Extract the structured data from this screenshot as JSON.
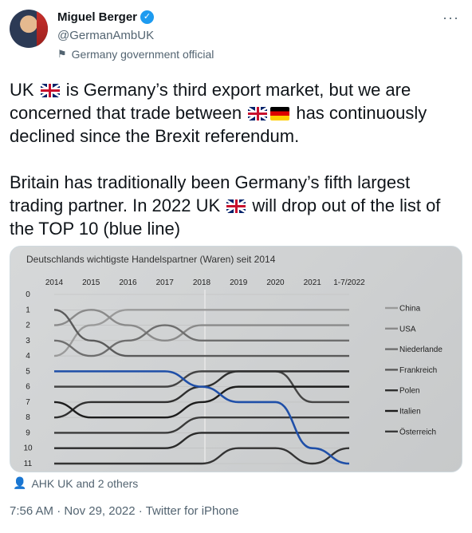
{
  "user": {
    "name": "Miguel Berger",
    "handle": "@GermanAmbUK",
    "affiliation": "Germany government official"
  },
  "tweet": {
    "p1_a": "UK ",
    "p1_b": " is Germany’s third export market, but we are concerned that trade between ",
    "p1_c": " has continuously declined since the Brexit referendum.",
    "p2_a": "Britain has traditionally been Germany’s fifth largest trading partner. In 2022 UK ",
    "p2_b": " will drop out of the list of the TOP 10 (blue line)"
  },
  "social_context": "AHK UK and 2 others",
  "meta": {
    "time": "7:56 AM",
    "sep1": " · ",
    "date": "Nov 29, 2022",
    "sep2": " · ",
    "source": "Twitter for iPhone"
  },
  "chart_data": {
    "type": "line",
    "title": "Deutschlands wichtigste Handelspartner (Waren) seit 2014",
    "x": [
      "2014",
      "2015",
      "2016",
      "2017",
      "2018",
      "2019",
      "2020",
      "2021",
      "1-7/2022"
    ],
    "ylim": [
      0,
      11
    ],
    "yticks": [
      0,
      1,
      2,
      3,
      4,
      5,
      6,
      7,
      8,
      9,
      10,
      11
    ],
    "legend_placement": "right",
    "series": [
      {
        "name": "China",
        "color": "#9a9a9a",
        "values": [
          4,
          2,
          1,
          1,
          1,
          1,
          1,
          1,
          1
        ]
      },
      {
        "name": "USA",
        "color": "#8a8a8a",
        "values": [
          2,
          1,
          2,
          3,
          2,
          2,
          2,
          2,
          2
        ]
      },
      {
        "name": "Niederlande",
        "color": "#6e6e6e",
        "values": [
          3,
          4,
          3,
          2,
          3,
          3,
          3,
          3,
          3
        ]
      },
      {
        "name": "Frankreich",
        "color": "#5a5a5a",
        "values": [
          1,
          3,
          4,
          4,
          4,
          4,
          4,
          4,
          4
        ]
      },
      {
        "name": "Polen",
        "color": "#2f2f2f",
        "values": [
          8,
          7,
          7,
          7,
          6,
          5,
          5,
          5,
          5
        ]
      },
      {
        "name": "Italien",
        "color": "#1c1c1c",
        "values": [
          7,
          8,
          8,
          8,
          7,
          6,
          6,
          6,
          6
        ]
      },
      {
        "name": "Österreich",
        "color": "#3a3a3a",
        "values": [
          9,
          9,
          9,
          9,
          8,
          8,
          8,
          8,
          8
        ]
      },
      {
        "name": "UK",
        "color": "#1f4fa8",
        "values": [
          5,
          5,
          5,
          5,
          6,
          7,
          7,
          10,
          11
        ]
      }
    ],
    "extra_series": [
      {
        "color": "#444444",
        "values": [
          6,
          6,
          6,
          6,
          5,
          5,
          5,
          7,
          7
        ]
      },
      {
        "color": "#2a2a2a",
        "values": [
          10,
          10,
          10,
          10,
          9,
          9,
          9,
          9,
          9
        ]
      },
      {
        "color": "#333333",
        "values": [
          11,
          11,
          11,
          11,
          11,
          10,
          10,
          11,
          10
        ]
      }
    ]
  }
}
